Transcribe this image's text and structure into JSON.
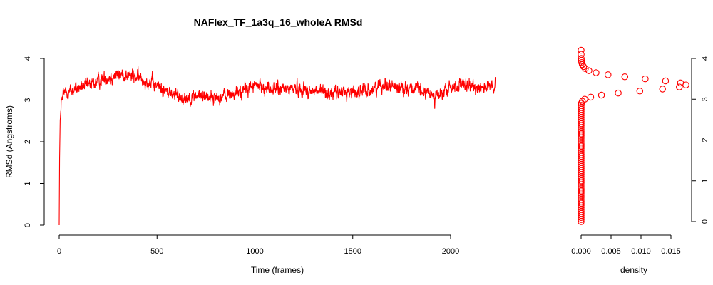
{
  "chart_data": [
    {
      "type": "line",
      "title": "NAFlex_TF_1a3q_16_wholeA RMSd",
      "xlabel": "Time (frames)",
      "ylabel": "RMSd (Angstroms)",
      "xlim": [
        0,
        2230
      ],
      "ylim": [
        0,
        4.2
      ],
      "x_ticks": [
        "0",
        "500",
        "1000",
        "1500",
        "2000"
      ],
      "y_ticks": [
        "0",
        "1",
        "2",
        "3",
        "4"
      ],
      "series_color": "#ff0000",
      "frames": 2230,
      "series": [
        {
          "x": [
            0,
            2,
            5,
            10,
            20,
            30,
            50,
            80,
            100,
            150,
            200,
            250,
            300,
            350,
            400,
            450,
            500,
            550,
            600,
            650,
            700,
            750,
            800,
            850,
            900,
            950,
            1000,
            1050,
            1100,
            1150,
            1200,
            1250,
            1300,
            1350,
            1400,
            1450,
            1500,
            1550,
            1600,
            1650,
            1700,
            1750,
            1800,
            1850,
            1900,
            1950,
            2000,
            2050,
            2100,
            2150,
            2200,
            2230
          ],
          "y": [
            0.0,
            1.6,
            2.5,
            2.9,
            3.1,
            3.2,
            3.2,
            3.25,
            3.3,
            3.35,
            3.45,
            3.55,
            3.6,
            3.6,
            3.55,
            3.45,
            3.35,
            3.2,
            3.1,
            3.05,
            3.1,
            3.1,
            3.05,
            3.1,
            3.15,
            3.25,
            3.35,
            3.3,
            3.25,
            3.25,
            3.3,
            3.25,
            3.2,
            3.2,
            3.15,
            3.2,
            3.2,
            3.2,
            3.25,
            3.4,
            3.35,
            3.3,
            3.3,
            3.2,
            3.15,
            3.1,
            3.3,
            3.35,
            3.3,
            3.35,
            3.3,
            3.3
          ]
        }
      ]
    },
    {
      "type": "scatter",
      "xlabel": "density",
      "ylabel": "",
      "xlim": [
        0,
        0.017
      ],
      "ylim": [
        0,
        4.2
      ],
      "x_ticks": [
        "0.000",
        "0.005",
        "0.010",
        "0.015"
      ],
      "y_ticks": [
        "0",
        "1",
        "2",
        "3",
        "4"
      ],
      "marker_color": "#ff0000",
      "series": [
        {
          "x": [
            0.0,
            0.0,
            0.0,
            0.0,
            0.0,
            0.0,
            0.0,
            0.0,
            0.0,
            0.0,
            0.0,
            0.0,
            0.0,
            0.0,
            0.0,
            0.0,
            0.0,
            0.0,
            0.0,
            0.0,
            0.0,
            0.0,
            0.0,
            0.0,
            0.0,
            0.0,
            0.0,
            0.0,
            0.0,
            0.0,
            0.0,
            0.0,
            0.0,
            0.0,
            0.0,
            0.0,
            0.0,
            0.0,
            0.0,
            0.0,
            0.0,
            0.0,
            0.0,
            0.0,
            0.0,
            0.0,
            0.0,
            0.0,
            0.0,
            0.0,
            0.0,
            0.0,
            0.0,
            0.0,
            0.0,
            0.0,
            0.0,
            1e-05,
            5e-05,
            0.0002,
            0.0006,
            0.0016,
            0.0034,
            0.0062,
            0.0098,
            0.0136,
            0.0164,
            0.0175,
            0.0166,
            0.0141,
            0.0107,
            0.0073,
            0.0045,
            0.0025,
            0.0013,
            0.0007,
            0.0004,
            0.0002,
            0.0001,
            5e-05,
            2e-05,
            1e-05,
            0.0
          ],
          "y": [
            0.0,
            0.05,
            0.1,
            0.15,
            0.2,
            0.25,
            0.3,
            0.35,
            0.4,
            0.45,
            0.5,
            0.55,
            0.6,
            0.65,
            0.7,
            0.75,
            0.8,
            0.85,
            0.9,
            0.95,
            1.0,
            1.05,
            1.1,
            1.15,
            1.2,
            1.25,
            1.3,
            1.35,
            1.4,
            1.45,
            1.5,
            1.55,
            1.6,
            1.65,
            1.7,
            1.75,
            1.8,
            1.85,
            1.9,
            1.95,
            2.0,
            2.05,
            2.1,
            2.15,
            2.2,
            2.25,
            2.3,
            2.35,
            2.4,
            2.45,
            2.5,
            2.55,
            2.6,
            2.65,
            2.7,
            2.75,
            2.8,
            2.85,
            2.9,
            2.95,
            3.0,
            3.05,
            3.1,
            3.15,
            3.2,
            3.25,
            3.3,
            3.35,
            3.4,
            3.45,
            3.5,
            3.55,
            3.6,
            3.65,
            3.7,
            3.75,
            3.8,
            3.85,
            3.9,
            3.95,
            4.0,
            4.1,
            4.2
          ]
        }
      ]
    }
  ]
}
